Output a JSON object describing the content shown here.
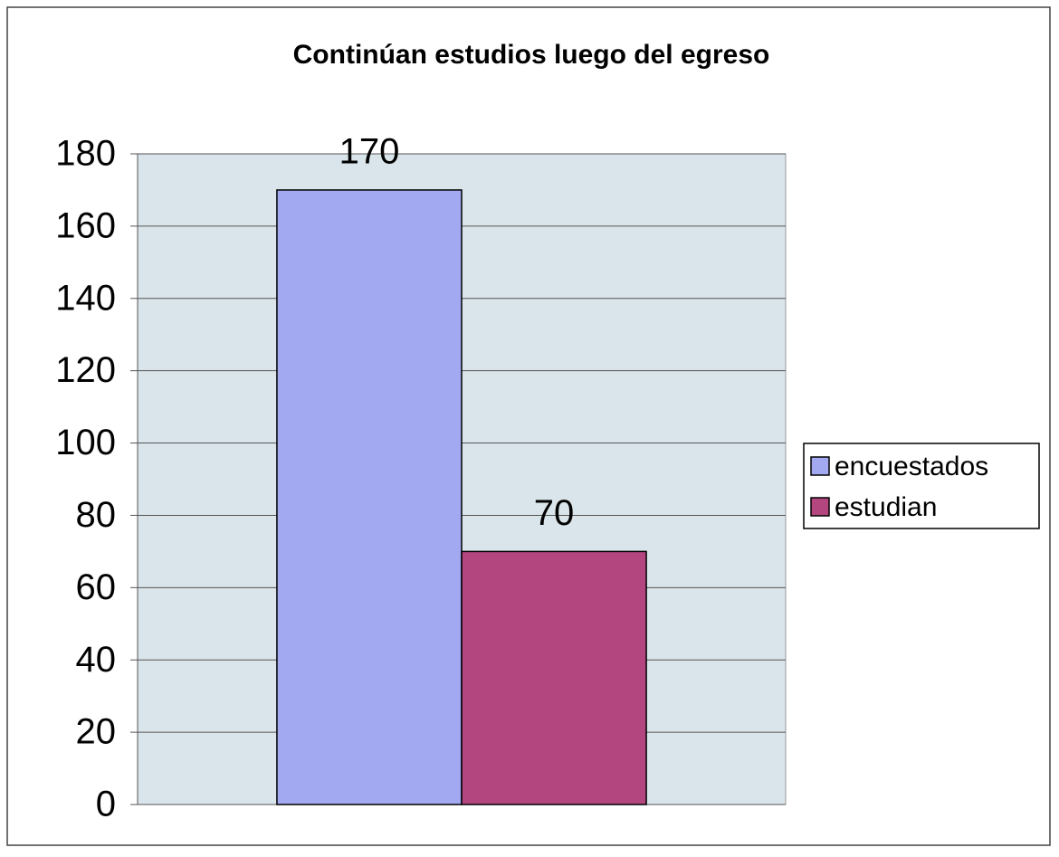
{
  "chart_data": {
    "type": "bar",
    "title": "Continúan estudios luego del egreso",
    "categories": [
      null
    ],
    "series": [
      {
        "name": "encuestados",
        "color": "#a3a9f0",
        "values": [
          170
        ]
      },
      {
        "name": "estudian",
        "color": "#b3457f",
        "values": [
          70
        ]
      }
    ],
    "ylim": [
      0,
      180
    ],
    "yticks": [
      0,
      20,
      40,
      60,
      80,
      100,
      120,
      140,
      160,
      180
    ],
    "grid": true,
    "legend": "right",
    "value_labels_shown": true
  }
}
